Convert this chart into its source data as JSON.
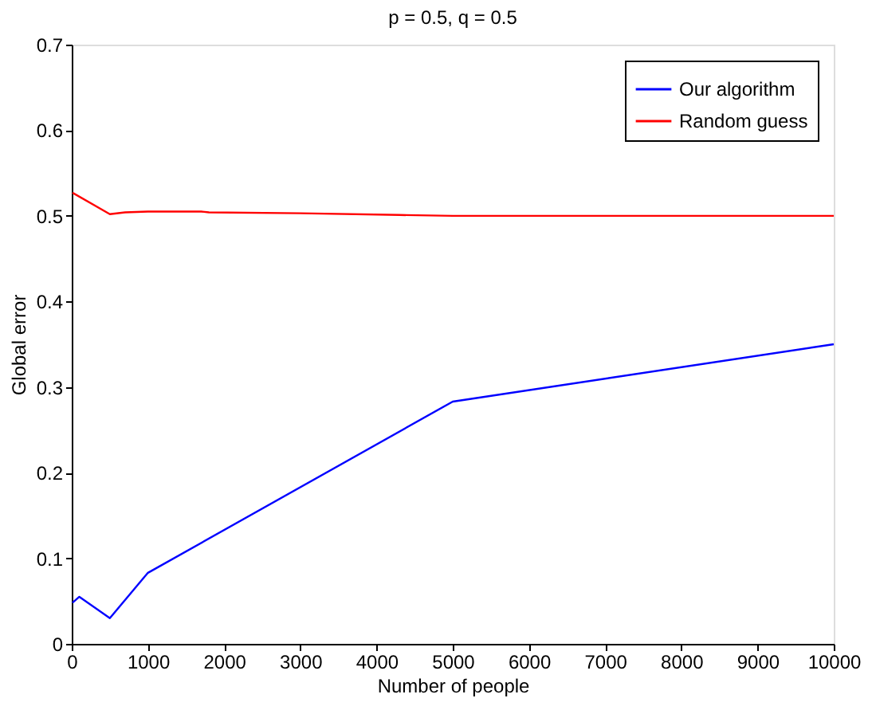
{
  "chart_data": {
    "type": "line",
    "title": "p = 0.5, q = 0.5",
    "xlabel": "Number of people",
    "ylabel": "Global error",
    "xlim": [
      0,
      10000
    ],
    "xticks": [
      0,
      1000,
      2000,
      3000,
      4000,
      5000,
      6000,
      7000,
      8000,
      9000,
      10000
    ],
    "ylim": [
      0,
      0.7
    ],
    "yticks": [
      0,
      0.1,
      0.2,
      0.3,
      0.4,
      0.5,
      0.6,
      0.7
    ],
    "grid": false,
    "legend": "top right",
    "marker": "none",
    "line_style": "solid",
    "series": [
      {
        "name": "Our algorithm",
        "color": "#0000ff",
        "x": [
          10,
          100,
          500,
          1000,
          5000,
          10000
        ],
        "values": [
          0.048,
          0.055,
          0.03,
          0.083,
          0.283,
          0.35
        ]
      },
      {
        "name": "Random guess",
        "color": "#ff0000",
        "x": [
          10,
          500,
          700,
          1000,
          1700,
          1800,
          3000,
          4300,
          5000,
          10000
        ],
        "values": [
          0.527,
          0.502,
          0.504,
          0.505,
          0.505,
          0.504,
          0.503,
          0.501,
          0.5,
          0.5
        ]
      }
    ]
  }
}
